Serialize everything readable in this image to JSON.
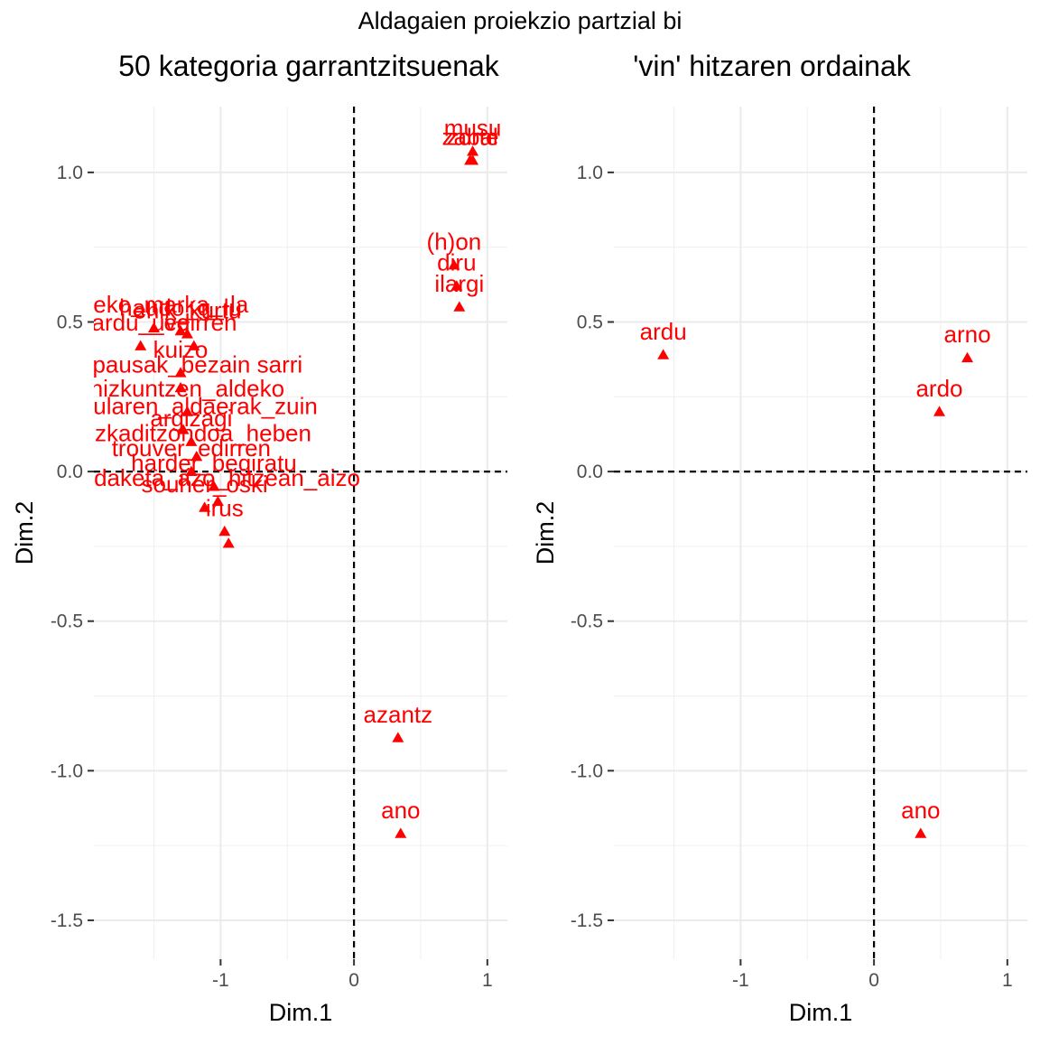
{
  "suptitle": "Aldagaien proiekzio partzial bi",
  "chart_data": [
    {
      "type": "scatter",
      "title": "50 kategoria garrantzitsuenak",
      "xlabel": "Dim.1",
      "ylabel": "Dim.2",
      "xlim": [
        -1.95,
        1.15
      ],
      "ylim": [
        -1.63,
        1.22
      ],
      "xticks": [
        -1,
        0,
        1
      ],
      "xtick_labels": [
        "-1",
        "0",
        "1"
      ],
      "yticks": [
        -1.5,
        -1.0,
        -0.5,
        0.0,
        0.5,
        1.0
      ],
      "ytick_labels": [
        "-1.5",
        "-1.0",
        "-0.5",
        "0.0",
        "0.5",
        "1.0"
      ],
      "grid": true,
      "reference_lines": {
        "x": 0,
        "y": 0
      },
      "point_color": "#ff0000",
      "points": [
        {
          "label": "musu",
          "x": 0.89,
          "y": 1.07
        },
        {
          "label": "zabal",
          "x": 0.87,
          "y": 1.04
        },
        {
          "label": "zorte",
          "x": 0.89,
          "y": 1.04
        },
        {
          "label": "(h)on",
          "x": 0.75,
          "y": 0.69
        },
        {
          "label": "diru",
          "x": 0.77,
          "y": 0.62
        },
        {
          "label": "ilargi",
          "x": 0.79,
          "y": 0.55
        },
        {
          "label": "larreko_marka_-la",
          "x": -1.5,
          "y": 0.48
        },
        {
          "label": "haudo_g_lu",
          "x": -1.3,
          "y": 0.47
        },
        {
          "label": "ehik_kurtu",
          "x": -1.25,
          "y": 0.46
        },
        {
          "label": "_edirren",
          "x": -1.2,
          "y": 0.42
        },
        {
          "label": "ardu_uve",
          "x": -1.6,
          "y": 0.42
        },
        {
          "label": "kuizo",
          "x": -1.3,
          "y": 0.33
        },
        {
          "label": "perpausak_bezain sarri",
          "x": -1.3,
          "y": 0.28
        },
        {
          "label": "hizkuntzen_aldeko",
          "x": -1.25,
          "y": 0.2
        },
        {
          "label": "artikularen_aldaerak_zuin",
          "x": -1.28,
          "y": 0.14
        },
        {
          "label": "argizagi",
          "x": -1.22,
          "y": 0.1
        },
        {
          "label": "ezkaditzondoa_heben",
          "x": -1.18,
          "y": 0.05
        },
        {
          "label": "trouver_edirren",
          "x": -1.22,
          "y": 0.0
        },
        {
          "label": "harder_begiratu",
          "x": -1.05,
          "y": -0.05
        },
        {
          "label": "aldaketa_azo_hitzean_aizo",
          "x": -1.02,
          "y": -0.1
        },
        {
          "label": "souher_oski",
          "x": -1.12,
          "y": -0.12
        },
        {
          "label": "irus",
          "x": -0.97,
          "y": -0.2
        },
        {
          "label": "",
          "x": -0.94,
          "y": -0.24
        },
        {
          "label": "azantz",
          "x": 0.33,
          "y": -0.89
        },
        {
          "label": "ano",
          "x": 0.35,
          "y": -1.21
        }
      ]
    },
    {
      "type": "scatter",
      "title": "'vin' hitzaren ordainak",
      "xlabel": "Dim.1",
      "ylabel": "Dim.2",
      "xlim": [
        -1.95,
        1.15
      ],
      "ylim": [
        -1.63,
        1.22
      ],
      "xticks": [
        -1,
        0,
        1
      ],
      "xtick_labels": [
        "-1",
        "0",
        "1"
      ],
      "yticks": [
        -1.5,
        -1.0,
        -0.5,
        0.0,
        0.5,
        1.0
      ],
      "ytick_labels": [
        "-1.5",
        "-1.0",
        "-0.5",
        "0.0",
        "0.5",
        "1.0"
      ],
      "grid": true,
      "reference_lines": {
        "x": 0,
        "y": 0
      },
      "point_color": "#ff0000",
      "points": [
        {
          "label": "ardu",
          "x": -1.58,
          "y": 0.39
        },
        {
          "label": "arno",
          "x": 0.7,
          "y": 0.38
        },
        {
          "label": "ardo",
          "x": 0.49,
          "y": 0.2
        },
        {
          "label": "ano",
          "x": 0.35,
          "y": -1.21
        }
      ]
    }
  ]
}
